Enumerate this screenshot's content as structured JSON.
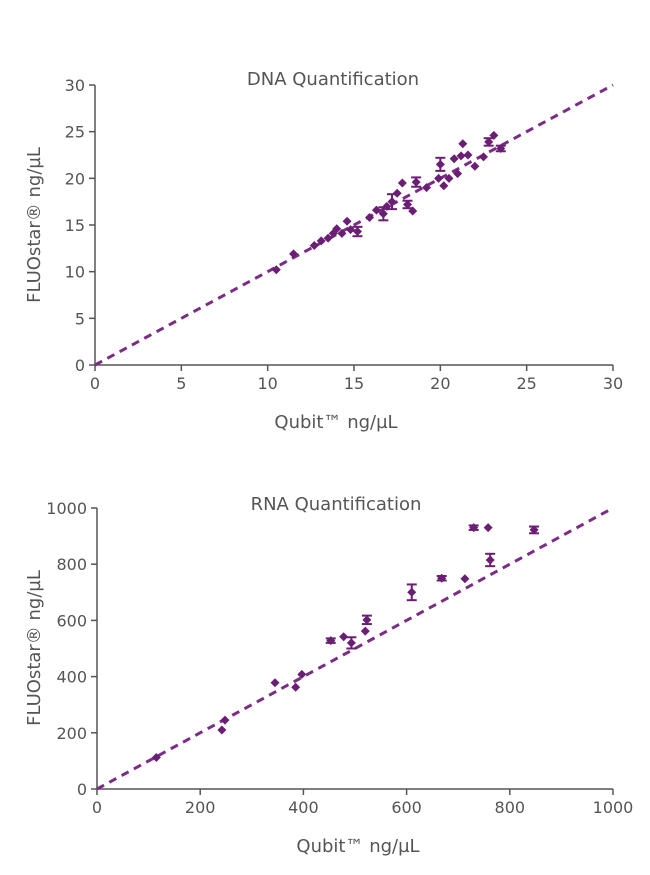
{
  "chart_data": [
    {
      "type": "scatter",
      "title": "DNA Quantification",
      "xlabel": "Qubit™ ng/µL",
      "ylabel": "FLUOstar® ng/µL",
      "xlim": [
        0,
        30
      ],
      "ylim": [
        0,
        30
      ],
      "xticks": [
        "0",
        "5",
        "10",
        "15",
        "20",
        "25",
        "30"
      ],
      "yticks": [
        "0",
        "5",
        "10",
        "15",
        "20",
        "25",
        "30"
      ],
      "grid": false,
      "colors": {
        "marker": "#6b1f74",
        "line": "#7b2d86",
        "axis": "#555555"
      },
      "reference_line": {
        "style": "dashed",
        "from": [
          0,
          0
        ],
        "to": [
          30,
          30
        ]
      },
      "series": [
        {
          "points": [
            {
              "x": 10.5,
              "y": 10.2
            },
            {
              "x": 11.5,
              "y": 11.9
            },
            {
              "x": 12.7,
              "y": 12.8
            },
            {
              "x": 13.1,
              "y": 13.3
            },
            {
              "x": 13.5,
              "y": 13.6
            },
            {
              "x": 13.8,
              "y": 14.1
            },
            {
              "x": 14.0,
              "y": 14.6
            },
            {
              "x": 14.3,
              "y": 14.1
            },
            {
              "x": 14.6,
              "y": 15.4
            },
            {
              "x": 14.8,
              "y": 14.5
            },
            {
              "x": 15.2,
              "y": 14.3,
              "err": 0.5
            },
            {
              "x": 15.9,
              "y": 15.8
            },
            {
              "x": 16.3,
              "y": 16.6
            },
            {
              "x": 16.7,
              "y": 16.2,
              "err": 0.7
            },
            {
              "x": 16.9,
              "y": 17.0
            },
            {
              "x": 17.2,
              "y": 17.5,
              "err": 0.8
            },
            {
              "x": 17.5,
              "y": 18.4
            },
            {
              "x": 17.8,
              "y": 19.5
            },
            {
              "x": 18.1,
              "y": 17.2,
              "err": 0.4
            },
            {
              "x": 18.4,
              "y": 16.5
            },
            {
              "x": 18.6,
              "y": 19.6,
              "err": 0.5
            },
            {
              "x": 19.2,
              "y": 19.0
            },
            {
              "x": 19.9,
              "y": 20.0
            },
            {
              "x": 20.0,
              "y": 21.5,
              "err": 0.7
            },
            {
              "x": 20.2,
              "y": 19.2
            },
            {
              "x": 20.5,
              "y": 20.0
            },
            {
              "x": 20.8,
              "y": 22.1
            },
            {
              "x": 21.0,
              "y": 20.5
            },
            {
              "x": 21.2,
              "y": 22.4
            },
            {
              "x": 21.3,
              "y": 23.7
            },
            {
              "x": 21.6,
              "y": 22.5
            },
            {
              "x": 22.0,
              "y": 21.3
            },
            {
              "x": 22.5,
              "y": 22.3
            },
            {
              "x": 22.8,
              "y": 23.9,
              "err": 0.4
            },
            {
              "x": 23.1,
              "y": 24.6
            },
            {
              "x": 23.5,
              "y": 23.2,
              "err": 0.3
            }
          ]
        }
      ]
    },
    {
      "type": "scatter",
      "title": "RNA Quantification",
      "xlabel": "Qubit™ ng/µL",
      "ylabel": "FLUOstar® ng/µL",
      "xlim": [
        0,
        1000
      ],
      "ylim": [
        0,
        1000
      ],
      "xticks": [
        "0",
        "200",
        "400",
        "600",
        "800",
        "1000"
      ],
      "yticks": [
        "0",
        "200",
        "400",
        "600",
        "800",
        "1000"
      ],
      "grid": false,
      "colors": {
        "marker": "#6b1f74",
        "line": "#7b2d86",
        "axis": "#555555"
      },
      "reference_line": {
        "style": "dashed",
        "from": [
          0,
          0
        ],
        "to": [
          1000,
          1000
        ]
      },
      "series": [
        {
          "points": [
            {
              "x": 115,
              "y": 112
            },
            {
              "x": 242,
              "y": 210
            },
            {
              "x": 248,
              "y": 245
            },
            {
              "x": 345,
              "y": 378
            },
            {
              "x": 385,
              "y": 362
            },
            {
              "x": 397,
              "y": 408
            },
            {
              "x": 453,
              "y": 528,
              "err": 8
            },
            {
              "x": 478,
              "y": 542
            },
            {
              "x": 493,
              "y": 520,
              "err": 20
            },
            {
              "x": 520,
              "y": 562
            },
            {
              "x": 523,
              "y": 602,
              "err": 15
            },
            {
              "x": 610,
              "y": 700,
              "err": 28
            },
            {
              "x": 668,
              "y": 750,
              "err": 8
            },
            {
              "x": 713,
              "y": 748
            },
            {
              "x": 730,
              "y": 930,
              "err": 8
            },
            {
              "x": 758,
              "y": 930
            },
            {
              "x": 762,
              "y": 815,
              "err": 22
            },
            {
              "x": 847,
              "y": 922,
              "err": 12
            }
          ]
        }
      ]
    }
  ]
}
